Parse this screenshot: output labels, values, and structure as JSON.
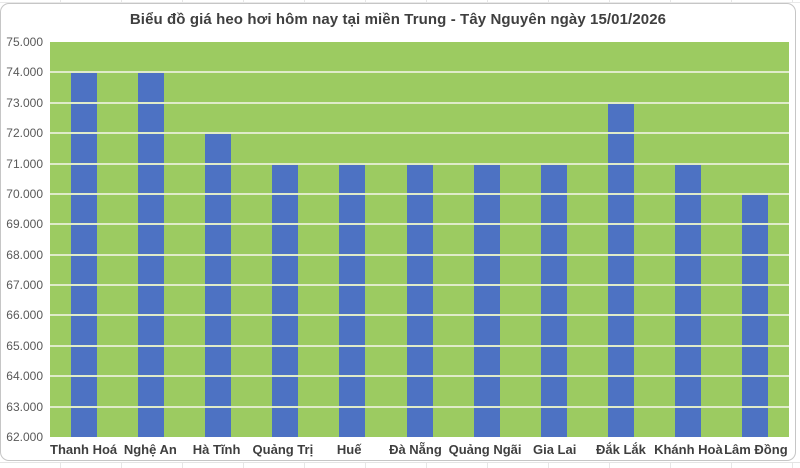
{
  "chart_data": {
    "type": "bar",
    "title": "Biểu đồ giá heo hơi hôm nay tại miền Trung - Tây Nguyên ngày 15/01/2026",
    "categories": [
      "Thanh Hoá",
      "Nghệ An",
      "Hà Tĩnh",
      "Quảng Trị",
      "Huế",
      "Đà Nẵng",
      "Quảng Ngãi",
      "Gia Lai",
      "Đắk Lắk",
      "Khánh Hoà",
      "Lâm Đồng"
    ],
    "values": [
      74000,
      74000,
      72000,
      71000,
      71000,
      71000,
      71000,
      71000,
      73000,
      71000,
      70000
    ],
    "xlabel": "",
    "ylabel": "",
    "ylim": [
      62000,
      75000
    ],
    "y_tick_step": 1000,
    "y_tick_labels": [
      "75.000",
      "74.000",
      "73.000",
      "72.000",
      "71.000",
      "70.000",
      "69.000",
      "68.000",
      "67.000",
      "66.000",
      "65.000",
      "64.000",
      "63.000",
      "62.000"
    ],
    "grid": "horizontal",
    "legend": "none",
    "colors": {
      "bar": "#4d72c3",
      "plot_background": "#9ccb61",
      "gridline": "#dfebc9",
      "title_text": "#3f3f3f",
      "axis_text": "#595959",
      "category_text": "#3f3f3f",
      "chart_border": "#c6c6c6"
    }
  }
}
